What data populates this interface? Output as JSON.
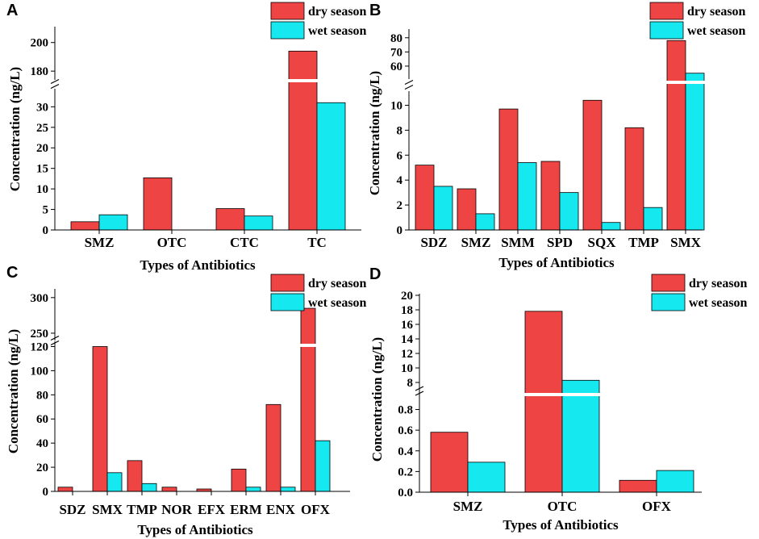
{
  "colors": {
    "dry": "#ee4444",
    "wet": "#15e8ef",
    "axis": "#000000"
  },
  "legend": {
    "dry": "dry season",
    "wet": "wet season"
  },
  "chart_data": [
    {
      "panel": "A",
      "type": "bar",
      "ylabel": "Concentration (ng/L)",
      "xlabel": "Types of Antibiotics",
      "categories": [
        "SMZ",
        "OTC",
        "CTC",
        "TC"
      ],
      "series": [
        {
          "name": "dry season",
          "values": [
            2.0,
            12.7,
            5.2,
            194
          ]
        },
        {
          "name": "wet season",
          "values": [
            3.7,
            0,
            3.4,
            31
          ]
        }
      ],
      "axis_break": {
        "lower": [
          0,
          34
        ],
        "upper": [
          175,
          210
        ]
      },
      "ticks_lower": [
        0,
        5,
        10,
        15,
        20,
        25,
        30
      ],
      "ticks_upper": [
        180,
        200
      ],
      "legend_position": "top-right"
    },
    {
      "panel": "B",
      "type": "bar",
      "ylabel": "Concentration (ng/L)",
      "xlabel": "Types of Antibiotics",
      "categories": [
        "SDZ",
        "SMZ",
        "SMM",
        "SPD",
        "SQX",
        "TMP",
        "SMX"
      ],
      "series": [
        {
          "name": "dry season",
          "values": [
            5.2,
            3.3,
            9.7,
            5.5,
            10.4,
            8.2,
            78
          ]
        },
        {
          "name": "wet season",
          "values": [
            3.5,
            1.3,
            5.4,
            3.0,
            0.6,
            1.8,
            55
          ]
        }
      ],
      "axis_break": {
        "lower": [
          0,
          11
        ],
        "upper": [
          52,
          85
        ]
      },
      "ticks_lower": [
        0,
        2,
        4,
        6,
        8,
        10
      ],
      "ticks_upper": [
        60,
        70,
        80
      ],
      "legend_position": "top-right"
    },
    {
      "panel": "C",
      "type": "bar",
      "ylabel": "Concentration (ng/L)",
      "xlabel": "Types of Antibiotics",
      "categories": [
        "SDZ",
        "SMX",
        "TMP",
        "NOR",
        "EFX",
        "ERM",
        "ENX",
        "OFX"
      ],
      "series": [
        {
          "name": "dry season",
          "values": [
            3.5,
            120,
            25.5,
            3.5,
            2.0,
            18.5,
            72,
            285
          ]
        },
        {
          "name": "wet season",
          "values": [
            0,
            15.5,
            6.5,
            0,
            0,
            3.5,
            3.5,
            42
          ]
        }
      ],
      "axis_break": {
        "lower": [
          0,
          123
        ],
        "upper": [
          242,
          310
        ]
      },
      "ticks_lower": [
        0,
        20,
        40,
        60,
        80,
        100,
        120
      ],
      "ticks_upper": [
        250,
        300
      ],
      "legend_position": "top-right"
    },
    {
      "panel": "D",
      "type": "bar",
      "ylabel": "Concentration (ng/L)",
      "xlabel": "Types of Antibiotics",
      "categories": [
        "SMZ",
        "OTC",
        "OFX"
      ],
      "series": [
        {
          "name": "dry season",
          "values": [
            0.58,
            17.8,
            0.115
          ]
        },
        {
          "name": "wet season",
          "values": [
            0.29,
            8.3,
            0.21
          ]
        }
      ],
      "axis_break": {
        "lower": [
          0,
          0.96
        ],
        "upper": [
          7,
          20
        ]
      },
      "ticks_lower": [
        0.0,
        0.2,
        0.4,
        0.6,
        0.8
      ],
      "ticks_upper": [
        8,
        10,
        12,
        14,
        16,
        18,
        20
      ],
      "legend_position": "top-right"
    }
  ]
}
